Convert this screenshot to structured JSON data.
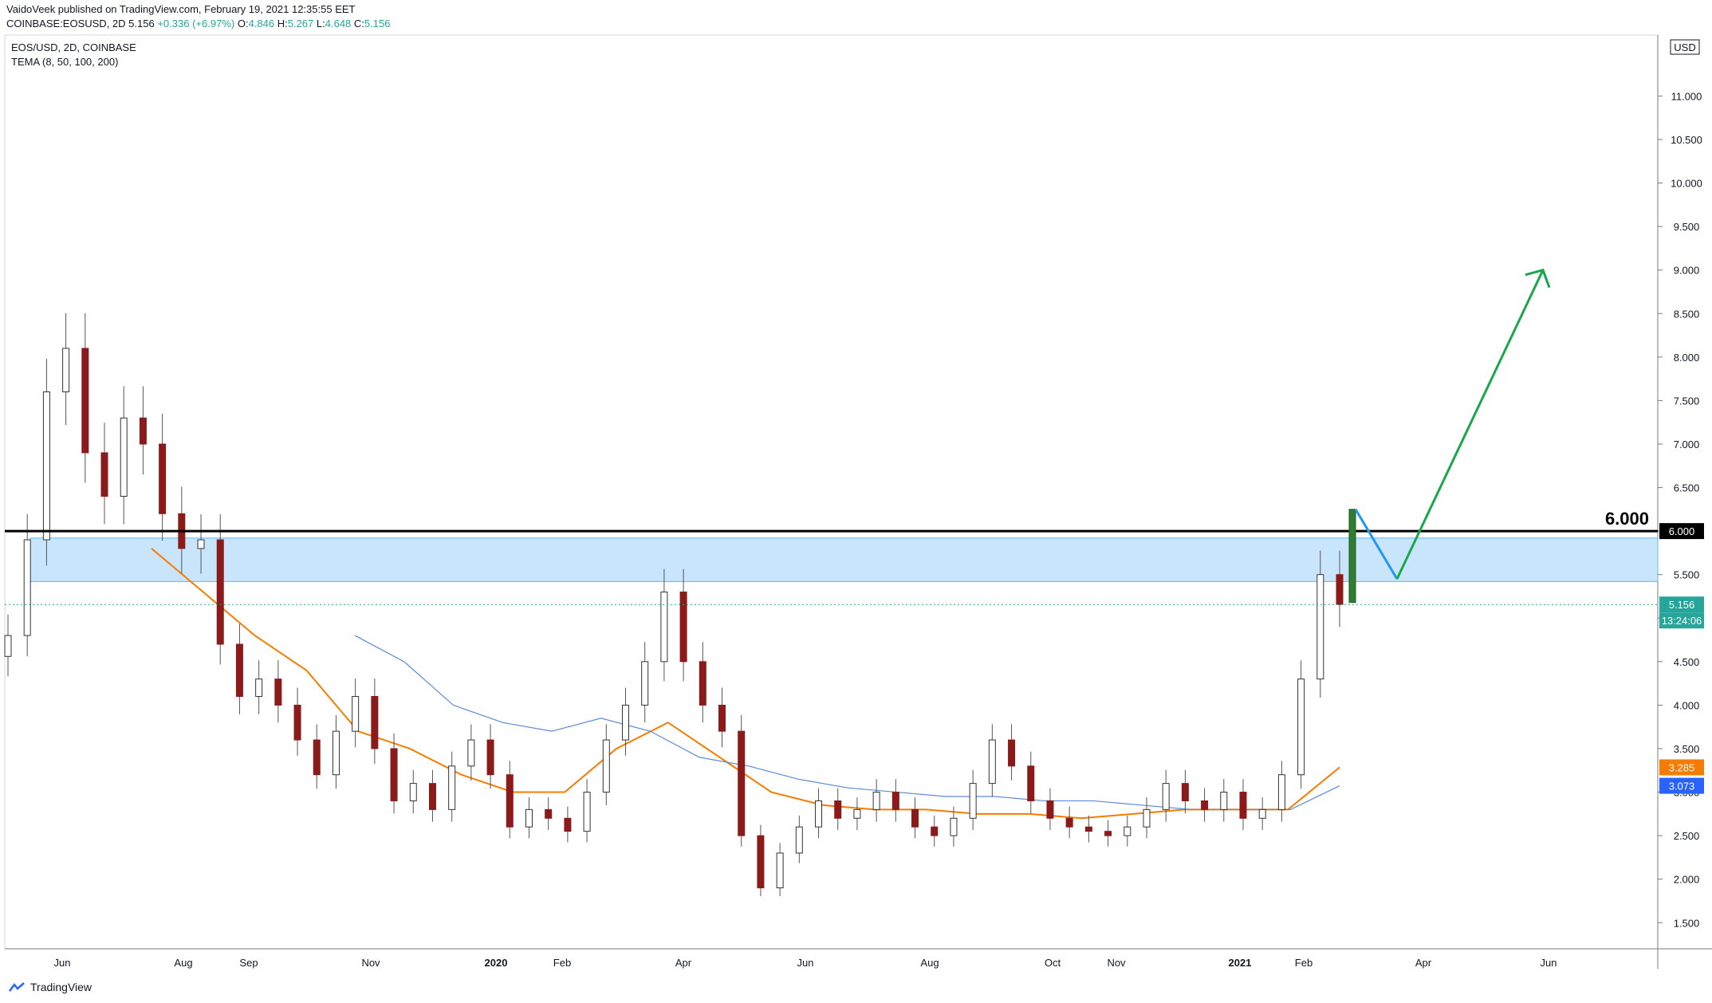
{
  "header": {
    "publish_line": "VaidoVeek published on TradingView.com, February 19, 2021 12:35:55 EET",
    "symbol_line": {
      "symbol": "COINBASE:EOSUSD, 2D",
      "last": "5.156",
      "change": "+0.336 (+6.97%)",
      "o_label": "O:",
      "o": "4.846",
      "h_label": "H:",
      "h": "5.267",
      "l_label": "L:",
      "l": "4.648",
      "c_label": "C:",
      "c": "5.156"
    }
  },
  "chart_data": {
    "type": "candlestick",
    "title": "EOS/USD, 2D, COINBASE",
    "indicator": "TEMA (8, 50, 100, 200)",
    "currency": "USD",
    "ylim": [
      1.2,
      11.7
    ],
    "y_ticks": [
      "1.500",
      "2.000",
      "2.500",
      "3.000",
      "3.500",
      "4.000",
      "4.500",
      "5.000",
      "5.500",
      "6.000",
      "6.500",
      "7.000",
      "7.500",
      "8.000",
      "8.500",
      "9.000",
      "9.500",
      "10.000",
      "10.500",
      "11.000"
    ],
    "x_ticks": [
      "Jun",
      "Aug",
      "Sep",
      "Nov",
      "2020",
      "Feb",
      "Apr",
      "Jun",
      "Aug",
      "Oct",
      "Nov",
      "2021",
      "Feb",
      "Apr",
      "Jun"
    ],
    "x_bold_ticks": [
      "2020",
      "2021"
    ],
    "resistance_level": 6.0,
    "resistance_label": "6.000",
    "zone": [
      5.42,
      5.92
    ],
    "current_price": 5.156,
    "price_badge": "5.156",
    "countdown_badge": "13:24:06",
    "level_badge": "6.000",
    "tema_values": {
      "orange": "3.285",
      "blue": "3.073"
    },
    "candles_close": [
      4.8,
      5.9,
      7.6,
      8.1,
      6.9,
      6.4,
      7.3,
      7.0,
      6.2,
      5.8,
      5.9,
      4.7,
      4.1,
      4.3,
      4.0,
      3.6,
      3.2,
      3.7,
      4.1,
      3.5,
      2.9,
      3.1,
      2.8,
      3.3,
      3.6,
      3.2,
      2.6,
      2.8,
      2.7,
      2.55,
      3.0,
      3.6,
      4.0,
      4.5,
      5.3,
      4.5,
      4.0,
      3.7,
      2.5,
      1.9,
      2.3,
      2.6,
      2.9,
      2.7,
      2.8,
      3.0,
      2.8,
      2.6,
      2.5,
      2.7,
      3.1,
      3.6,
      3.3,
      2.9,
      2.7,
      2.6,
      2.55,
      2.5,
      2.6,
      2.8,
      3.1,
      2.9,
      2.8,
      3.0,
      2.7,
      2.8,
      3.2,
      4.3,
      5.5,
      5.156
    ],
    "series": [
      {
        "name": "TEMA 50",
        "color": "#f57c00",
        "values": [
          5.8,
          5.3,
          4.8,
          4.4,
          3.7,
          3.5,
          3.2,
          3.0,
          3.0,
          3.5,
          3.8,
          3.4,
          3.0,
          2.85,
          2.8,
          2.8,
          2.75,
          2.75,
          2.7,
          2.75,
          2.8,
          2.8,
          2.8,
          3.285
        ]
      },
      {
        "name": "TEMA 100",
        "color": "#5b8ad8",
        "values": [
          4.8,
          4.5,
          4.0,
          3.8,
          3.7,
          3.85,
          3.7,
          3.4,
          3.3,
          3.15,
          3.05,
          3.0,
          2.95,
          2.95,
          2.9,
          2.9,
          2.85,
          2.8,
          2.8,
          2.8,
          3.073
        ]
      }
    ],
    "projection": {
      "points": [
        [
          6.25
        ],
        [
          5.45
        ],
        [
          9.0
        ]
      ],
      "colors": [
        "#2196f3",
        "#1aa64b"
      ]
    }
  },
  "footer": {
    "brand": "TradingView"
  }
}
